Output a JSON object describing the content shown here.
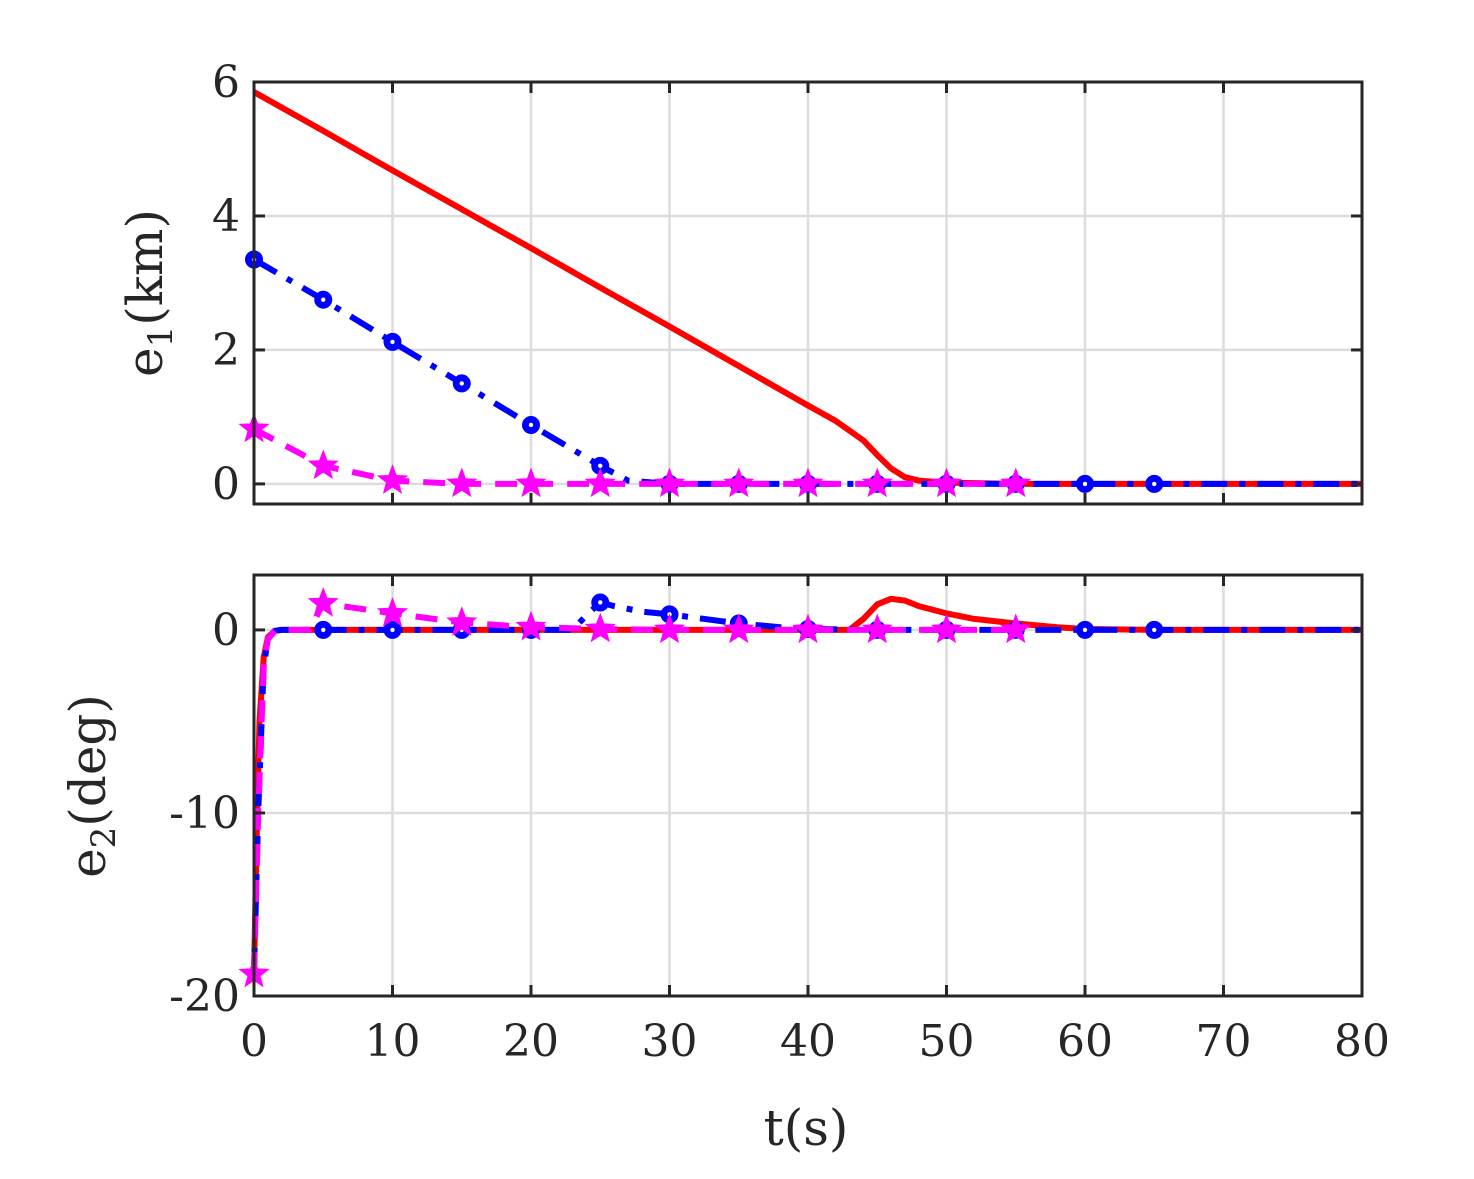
{
  "chart_data": [
    {
      "type": "line",
      "ylabel": "e1(km)",
      "ylabel_main": "e",
      "ylabel_sub": "1",
      "ylabel_unit": "(km)",
      "xlim": [
        0,
        80
      ],
      "ylim": [
        -0.3,
        6
      ],
      "xticks": [
        0,
        10,
        20,
        30,
        40,
        50,
        60,
        70,
        80
      ],
      "yticks": [
        0,
        2,
        4,
        6
      ],
      "ytick_labels": [
        "0",
        "2",
        "4",
        "6"
      ],
      "grid": true,
      "series": [
        {
          "color": "#ff0000",
          "dash": "solid",
          "marker": "none",
          "x": [
            0,
            5,
            10,
            15,
            20,
            25,
            30,
            35,
            40,
            42,
            44,
            45,
            46,
            47,
            48,
            50,
            55,
            60,
            70,
            80
          ],
          "y": [
            5.85,
            5.27,
            4.68,
            4.1,
            3.52,
            2.93,
            2.35,
            1.76,
            1.17,
            0.94,
            0.65,
            0.43,
            0.23,
            0.1,
            0.05,
            0.02,
            0,
            0,
            0,
            0
          ]
        },
        {
          "color": "#0000ff",
          "dash": "dashdot",
          "marker": "circle",
          "marker_x": [
            0,
            5,
            10,
            15,
            20,
            25,
            30,
            35,
            40,
            45,
            50,
            55,
            60,
            65
          ],
          "x": [
            0,
            5,
            10,
            15,
            20,
            25,
            27,
            30,
            35,
            40,
            45,
            50,
            55,
            60,
            65,
            70,
            80
          ],
          "y": [
            3.35,
            2.75,
            2.12,
            1.5,
            0.88,
            0.27,
            0.05,
            0,
            0,
            0,
            0,
            0,
            0,
            0,
            0,
            0,
            0
          ]
        },
        {
          "color": "#ff00ff",
          "dash": "dashed",
          "marker": "star",
          "marker_x": [
            0,
            5,
            10,
            15,
            20,
            25,
            30,
            35,
            40,
            45,
            50,
            55
          ],
          "x": [
            0,
            5,
            10,
            15,
            20,
            25,
            30,
            35,
            40,
            45,
            50,
            55
          ],
          "y": [
            0.82,
            0.27,
            0.05,
            0,
            0,
            0,
            0,
            0,
            0,
            0,
            0,
            0
          ]
        }
      ]
    },
    {
      "type": "line",
      "ylabel": "e2(deg)",
      "ylabel_main": "e",
      "ylabel_sub": "2",
      "ylabel_unit": "(deg)",
      "xlabel": "t(s)",
      "xlim": [
        0,
        80
      ],
      "ylim": [
        -20,
        3
      ],
      "xticks": [
        0,
        10,
        20,
        30,
        40,
        50,
        60,
        70,
        80
      ],
      "xtick_labels": [
        "0",
        "10",
        "20",
        "30",
        "40",
        "50",
        "60",
        "70",
        "80"
      ],
      "yticks": [
        -20,
        -10,
        0
      ],
      "ytick_labels": [
        "-20",
        "-10",
        "0"
      ],
      "grid": true,
      "series": [
        {
          "color": "#ff0000",
          "dash": "solid",
          "marker": "none",
          "x": [
            0,
            0.2,
            0.4,
            0.7,
            1,
            1.5,
            2,
            5,
            10,
            20,
            30,
            40,
            43,
            44,
            45,
            46,
            47,
            48,
            50,
            52,
            55,
            58,
            60,
            65,
            70,
            80
          ],
          "y": [
            -18.8,
            -11,
            -5,
            -1.5,
            -0.4,
            -0.05,
            0,
            0,
            0,
            0,
            0,
            0,
            0,
            0.6,
            1.4,
            1.7,
            1.6,
            1.3,
            0.9,
            0.6,
            0.35,
            0.15,
            0.05,
            0,
            0,
            0
          ]
        },
        {
          "color": "#0000ff",
          "dash": "dashdot",
          "marker": "circle",
          "marker_x": [
            5,
            10,
            15,
            20,
            25,
            30,
            35,
            40,
            45,
            50,
            55,
            60,
            65
          ],
          "x": [
            0,
            0.3,
            0.7,
            1,
            1.5,
            2,
            5,
            10,
            15,
            20,
            23,
            24,
            25,
            26,
            28,
            30,
            33,
            35,
            38,
            40,
            45,
            50,
            55,
            60,
            65,
            70,
            80
          ],
          "y": [
            -18.8,
            -10,
            -2,
            -0.5,
            -0.05,
            0,
            0,
            0,
            0,
            0,
            0,
            0.8,
            1.5,
            1.3,
            1.0,
            0.85,
            0.55,
            0.35,
            0.15,
            0.05,
            0,
            0,
            0,
            0,
            0,
            0,
            0
          ]
        },
        {
          "color": "#ff00ff",
          "dash": "dashed",
          "marker": "star",
          "marker_x": [
            0,
            5,
            10,
            15,
            20,
            25,
            30,
            35,
            40,
            45,
            50,
            55
          ],
          "x": [
            0,
            0.3,
            0.7,
            1,
            1.5,
            2,
            4,
            5,
            10,
            15,
            20,
            25,
            30,
            35,
            40,
            45,
            50,
            55
          ],
          "y": [
            -18.8,
            -10,
            -2,
            -0.5,
            -0.05,
            0,
            0,
            1.45,
            0.9,
            0.4,
            0.15,
            0.05,
            0,
            0,
            0,
            0,
            0,
            0
          ]
        }
      ]
    }
  ]
}
